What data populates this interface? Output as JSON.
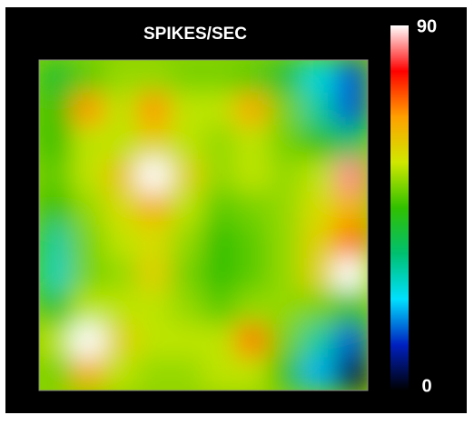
{
  "chart_data": {
    "type": "heatmap",
    "title": "SPIKES/SEC",
    "values": [
      [
        40,
        48,
        52,
        52,
        50,
        50,
        48,
        40,
        25,
        15
      ],
      [
        45,
        68,
        55,
        68,
        55,
        55,
        66,
        50,
        30,
        15
      ],
      [
        45,
        55,
        55,
        60,
        55,
        52,
        55,
        50,
        45,
        35
      ],
      [
        48,
        55,
        62,
        90,
        60,
        52,
        55,
        52,
        55,
        85
      ],
      [
        45,
        52,
        58,
        65,
        55,
        48,
        50,
        52,
        58,
        65
      ],
      [
        30,
        50,
        55,
        58,
        52,
        45,
        48,
        52,
        60,
        70
      ],
      [
        28,
        50,
        52,
        60,
        50,
        45,
        48,
        52,
        60,
        90
      ],
      [
        40,
        55,
        55,
        55,
        52,
        48,
        52,
        52,
        50,
        45
      ],
      [
        55,
        90,
        60,
        55,
        55,
        55,
        70,
        50,
        30,
        15
      ],
      [
        50,
        65,
        55,
        52,
        52,
        55,
        55,
        45,
        20,
        5
      ]
    ],
    "zlim": [
      0,
      90
    ],
    "zticks": [
      0,
      90
    ],
    "colormap": [
      "#000000",
      "#0020c0",
      "#00e0ff",
      "#00c070",
      "#30c000",
      "#d0e800",
      "#ffa000",
      "#ff0000",
      "#ffffff"
    ]
  }
}
